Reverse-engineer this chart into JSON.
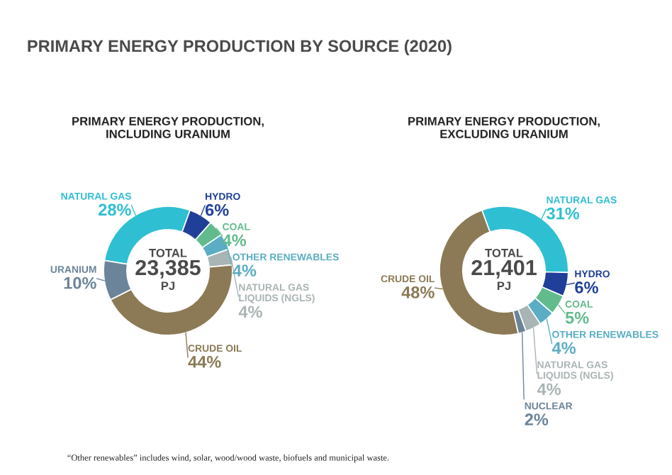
{
  "chart_data": [
    {
      "type": "donut",
      "title": "PRIMARY ENERGY PRODUCTION BY SOURCE (2020)",
      "subtitle": "PRIMARY ENERGY PRODUCTION,\nINCLUDING URANIUM",
      "categories": [
        "NATURAL GAS",
        "HYDRO",
        "COAL",
        "OTHER RENEWABLES",
        "NATURAL GAS\nLIQUIDS (NGLS)",
        "CRUDE OIL",
        "URANIUM"
      ],
      "values": [
        28,
        6,
        4,
        4,
        4,
        44,
        10
      ],
      "value_labels": [
        "28%",
        "6%",
        "4%",
        "4%",
        "4%",
        "44%",
        "10%"
      ],
      "colors": [
        "#2fbfd2",
        "#1f3f99",
        "#62bb8c",
        "#5aadc2",
        "#a9b4b4",
        "#8b7a55",
        "#6b8499"
      ],
      "annotations": [
        "TOTAL",
        "23,385",
        "PJ"
      ]
    },
    {
      "type": "donut",
      "subtitle": "PRIMARY ENERGY PRODUCTION,\nEXCLUDING URANIUM",
      "categories": [
        "NATURAL GAS",
        "HYDRO",
        "COAL",
        "OTHER RENEWABLES",
        "NATURAL GAS\nLIQUIDS (NGLS)",
        "NUCLEAR",
        "CRUDE OIL"
      ],
      "values": [
        31,
        6,
        5,
        4,
        4,
        2,
        48
      ],
      "value_labels": [
        "31%",
        "6%",
        "5%",
        "4%",
        "4%",
        "2%",
        "48%"
      ],
      "colors": [
        "#2fbfd2",
        "#1f3f99",
        "#62bb8c",
        "#5aadc2",
        "#a9b4b4",
        "#6b8499",
        "#8b7a55"
      ],
      "annotations": [
        "TOTAL",
        "21,401",
        "PJ",
        "“Other renewables” includes wind, solar, wood/wood waste, biofuels and municipal waste."
      ]
    }
  ]
}
